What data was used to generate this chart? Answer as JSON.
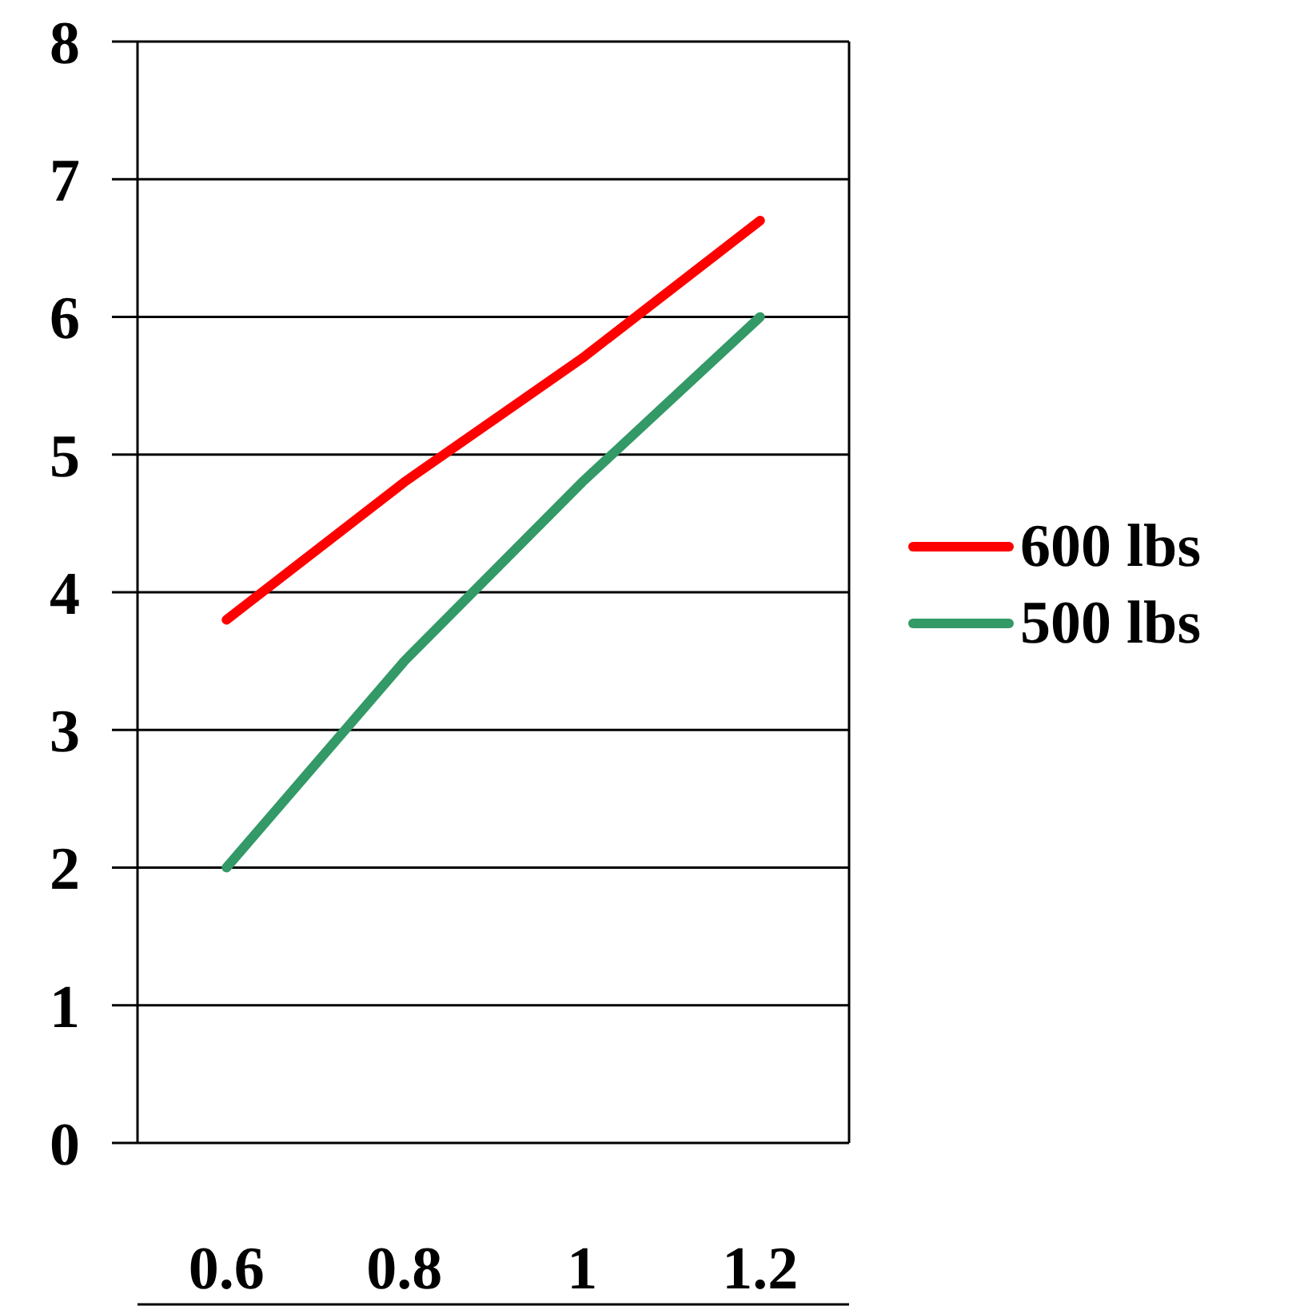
{
  "chart_data": {
    "type": "line",
    "categories": [
      "0.6",
      "0.8",
      "1",
      "1.2"
    ],
    "series": [
      {
        "name": "600 lbs",
        "color": "#ff0000",
        "values": [
          3.8,
          4.8,
          5.7,
          6.7
        ]
      },
      {
        "name": "500 lbs",
        "color": "#339966",
        "values": [
          2.0,
          3.5,
          4.8,
          6.0
        ]
      }
    ],
    "ylim": [
      0,
      8
    ],
    "yticks": [
      0,
      1,
      2,
      3,
      4,
      5,
      6,
      7,
      8
    ],
    "grid": "y",
    "legend": "right",
    "marker": "none",
    "line_style": "solid"
  }
}
